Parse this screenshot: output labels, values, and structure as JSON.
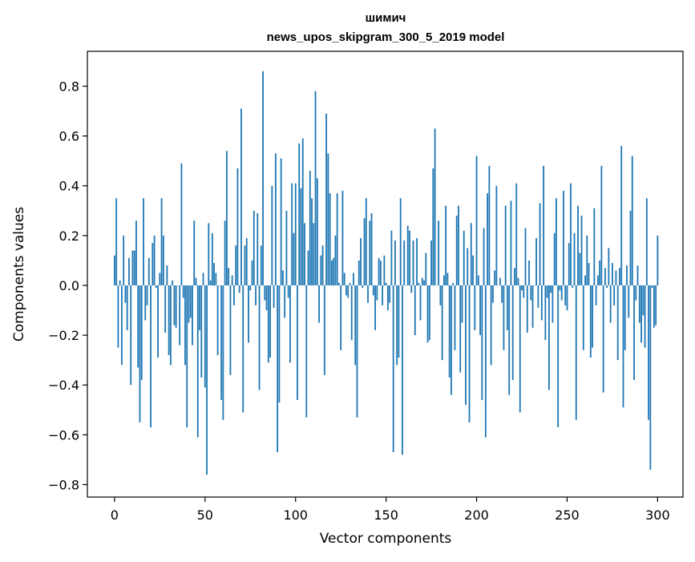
{
  "chart_data": {
    "type": "bar",
    "title_line1": "шимич",
    "title_line2": "news_upos_skipgram_300_5_2019 model",
    "xlabel": "Vector components",
    "ylabel": "Components values",
    "xlim": [
      -15,
      314
    ],
    "ylim": [
      -0.85,
      0.94
    ],
    "xticks": [
      0,
      50,
      100,
      150,
      200,
      250,
      300
    ],
    "xtick_labels": [
      "0",
      "50",
      "100",
      "150",
      "200",
      "250",
      "300"
    ],
    "yticks": [
      -0.8,
      -0.6,
      -0.4,
      -0.2,
      0.0,
      0.2,
      0.4,
      0.6,
      0.8
    ],
    "ytick_labels": [
      "−0.8",
      "−0.6",
      "−0.4",
      "−0.2",
      "0.0",
      "0.2",
      "0.4",
      "0.6",
      "0.8"
    ],
    "bar_color": "#1f77b4",
    "grid": false,
    "values": [
      0.12,
      0.35,
      -0.25,
      0.02,
      -0.32,
      0.2,
      -0.07,
      -0.18,
      0.11,
      -0.4,
      0.14,
      0.14,
      0.26,
      -0.33,
      -0.55,
      -0.38,
      0.35,
      -0.14,
      -0.08,
      0.11,
      -0.57,
      0.17,
      0.2,
      -0.01,
      -0.29,
      0.05,
      0.35,
      0.2,
      -0.19,
      0.08,
      -0.28,
      -0.32,
      0.02,
      -0.16,
      -0.17,
      0.0,
      -0.24,
      0.49,
      -0.05,
      -0.32,
      -0.57,
      -0.15,
      -0.13,
      -0.24,
      0.26,
      0.03,
      -0.61,
      -0.18,
      -0.37,
      0.05,
      -0.41,
      -0.76,
      0.25,
      0.02,
      0.21,
      0.09,
      0.05,
      -0.28,
      0.0,
      -0.46,
      -0.54,
      0.26,
      0.54,
      0.07,
      -0.36,
      0.04,
      -0.08,
      0.16,
      0.47,
      -0.03,
      0.71,
      -0.51,
      0.16,
      0.19,
      -0.23,
      -0.02,
      0.1,
      0.3,
      -0.08,
      0.29,
      -0.42,
      0.16,
      0.86,
      -0.06,
      -0.1,
      -0.31,
      -0.29,
      0.4,
      -0.09,
      0.53,
      -0.67,
      -0.47,
      0.51,
      0.06,
      -0.13,
      0.3,
      -0.05,
      -0.31,
      0.41,
      0.21,
      0.41,
      -0.46,
      0.57,
      0.39,
      0.59,
      0.25,
      -0.53,
      0.14,
      0.46,
      0.35,
      0.25,
      0.78,
      0.43,
      -0.15,
      0.12,
      0.16,
      -0.36,
      0.69,
      0.53,
      0.37,
      0.1,
      0.11,
      0.2,
      0.37,
      0.01,
      -0.26,
      0.38,
      0.05,
      -0.04,
      -0.05,
      0.01,
      -0.22,
      0.05,
      -0.32,
      -0.53,
      0.1,
      0.19,
      -0.01,
      0.27,
      0.35,
      -0.07,
      0.26,
      0.29,
      -0.04,
      -0.18,
      -0.06,
      0.11,
      0.1,
      -0.08,
      0.12,
      0.01,
      -0.1,
      -0.07,
      0.22,
      -0.67,
      0.18,
      -0.32,
      -0.29,
      0.35,
      -0.68,
      0.18,
      0.0,
      0.24,
      0.22,
      -0.03,
      0.18,
      -0.2,
      0.19,
      0.01,
      -0.14,
      0.03,
      0.02,
      0.13,
      -0.23,
      -0.22,
      0.18,
      0.47,
      0.63,
      0.0,
      0.26,
      -0.08,
      -0.3,
      0.04,
      0.32,
      0.05,
      -0.37,
      -0.44,
      0.01,
      -0.26,
      0.28,
      0.32,
      -0.35,
      -0.15,
      0.22,
      -0.48,
      0.15,
      -0.55,
      0.25,
      0.12,
      -0.18,
      0.52,
      0.04,
      -0.2,
      -0.46,
      0.23,
      -0.61,
      0.37,
      0.48,
      -0.32,
      -0.07,
      0.06,
      0.4,
      0.0,
      0.03,
      -0.07,
      -0.26,
      0.32,
      -0.18,
      -0.44,
      0.34,
      -0.38,
      0.07,
      0.41,
      0.03,
      -0.51,
      -0.02,
      -0.05,
      0.23,
      -0.19,
      0.1,
      -0.06,
      -0.17,
      0.0,
      0.19,
      -0.09,
      0.33,
      -0.14,
      0.48,
      -0.22,
      -0.05,
      -0.42,
      -0.03,
      -0.15,
      0.21,
      0.35,
      -0.57,
      -0.02,
      -0.06,
      0.38,
      -0.08,
      -0.1,
      0.17,
      0.41,
      -0.01,
      0.21,
      -0.54,
      0.32,
      0.13,
      0.28,
      -0.26,
      0.04,
      0.2,
      0.09,
      -0.29,
      -0.25,
      0.31,
      -0.08,
      0.04,
      0.1,
      0.48,
      -0.43,
      0.07,
      -0.01,
      0.15,
      -0.15,
      0.09,
      -0.08,
      0.06,
      -0.3,
      0.07,
      0.56,
      -0.49,
      -0.26,
      0.08,
      -0.13,
      0.3,
      0.52,
      -0.38,
      -0.06,
      0.08,
      -0.15,
      -0.23,
      -0.12,
      -0.25,
      0.35,
      -0.54,
      -0.74,
      -0.01,
      -0.17,
      -0.16,
      0.2
    ]
  }
}
